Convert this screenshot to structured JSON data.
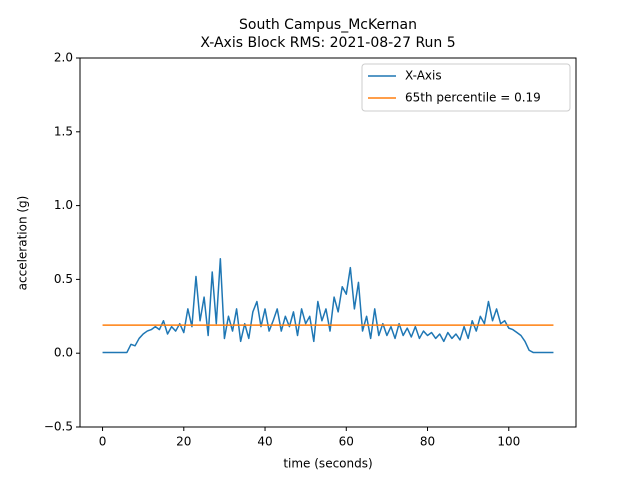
{
  "chart_data": {
    "type": "line",
    "title": [
      "South Campus_McKernan",
      "X-Axis Block RMS: 2021-08-27 Run 5"
    ],
    "xlabel": "time (seconds)",
    "ylabel": "acceleration (g)",
    "xlim": [
      -5.55,
      116.55
    ],
    "ylim": [
      -0.5,
      2.0
    ],
    "xticks": [
      0,
      20,
      40,
      60,
      80,
      100
    ],
    "yticks": [
      {
        "value": -0.5,
        "label": "−0.5"
      },
      {
        "value": 0,
        "label": "0.0"
      },
      {
        "value": 0.5,
        "label": "0.5"
      },
      {
        "value": 1,
        "label": "1.0"
      },
      {
        "value": 1.5,
        "label": "1.5"
      },
      {
        "value": 2,
        "label": "2.0"
      }
    ],
    "legend": "upper right",
    "series": [
      {
        "name": "X-Axis",
        "color": "#1f77b4",
        "x": [
          0,
          1,
          2,
          3,
          4,
          5,
          6,
          7,
          8,
          9,
          10,
          11,
          12,
          13,
          14,
          15,
          16,
          17,
          18,
          19,
          20,
          21,
          22,
          23,
          24,
          25,
          26,
          27,
          28,
          29,
          30,
          31,
          32,
          33,
          34,
          35,
          36,
          37,
          38,
          39,
          40,
          41,
          42,
          43,
          44,
          45,
          46,
          47,
          48,
          49,
          50,
          51,
          52,
          53,
          54,
          55,
          56,
          57,
          58,
          59,
          60,
          61,
          62,
          63,
          64,
          65,
          66,
          67,
          68,
          69,
          70,
          71,
          72,
          73,
          74,
          75,
          76,
          77,
          78,
          79,
          80,
          81,
          82,
          83,
          84,
          85,
          86,
          87,
          88,
          89,
          90,
          91,
          92,
          93,
          94,
          95,
          96,
          97,
          98,
          99,
          100,
          101,
          102,
          103,
          104,
          105,
          106,
          107,
          108,
          109,
          110,
          111
        ],
        "values": [
          0.005,
          0.005,
          0.005,
          0.005,
          0.005,
          0.005,
          0.005,
          0.06,
          0.05,
          0.1,
          0.13,
          0.15,
          0.16,
          0.18,
          0.16,
          0.22,
          0.13,
          0.18,
          0.15,
          0.2,
          0.14,
          0.3,
          0.18,
          0.52,
          0.22,
          0.38,
          0.12,
          0.55,
          0.2,
          0.64,
          0.1,
          0.25,
          0.15,
          0.3,
          0.08,
          0.2,
          0.1,
          0.28,
          0.35,
          0.18,
          0.3,
          0.15,
          0.22,
          0.3,
          0.15,
          0.25,
          0.18,
          0.28,
          0.12,
          0.3,
          0.2,
          0.25,
          0.08,
          0.35,
          0.22,
          0.3,
          0.15,
          0.38,
          0.28,
          0.45,
          0.4,
          0.58,
          0.3,
          0.48,
          0.15,
          0.25,
          0.1,
          0.3,
          0.12,
          0.2,
          0.12,
          0.18,
          0.1,
          0.2,
          0.12,
          0.17,
          0.11,
          0.18,
          0.1,
          0.15,
          0.12,
          0.14,
          0.1,
          0.13,
          0.08,
          0.14,
          0.1,
          0.13,
          0.09,
          0.18,
          0.1,
          0.22,
          0.15,
          0.25,
          0.2,
          0.35,
          0.22,
          0.3,
          0.2,
          0.22,
          0.17,
          0.16,
          0.14,
          0.12,
          0.08,
          0.02,
          0.005,
          0.005,
          0.005,
          0.005,
          0.005,
          0.005
        ]
      },
      {
        "name": "65th percentile = 0.19",
        "color": "#ff7f0e",
        "x": [
          0,
          111
        ],
        "values": [
          0.19,
          0.19
        ]
      }
    ]
  }
}
